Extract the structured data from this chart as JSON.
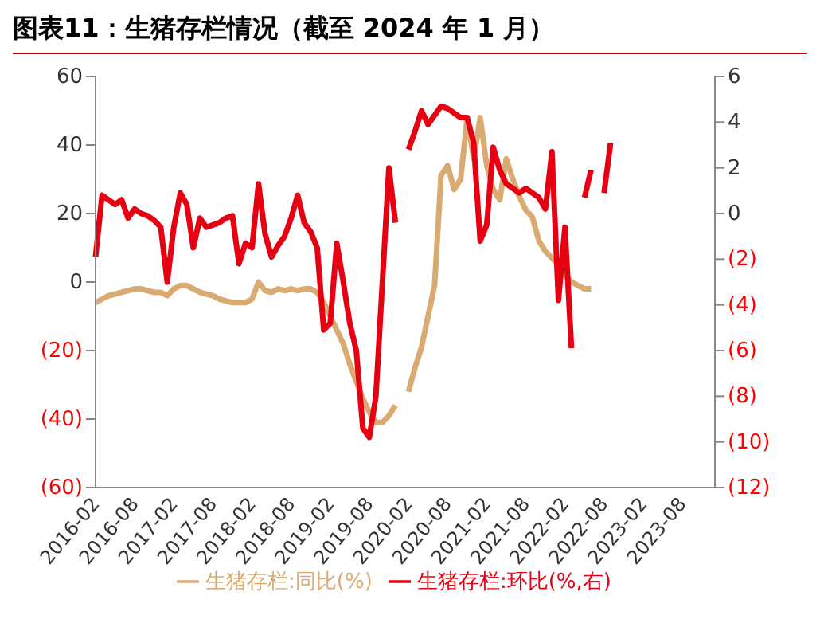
{
  "chart_data": {
    "type": "line",
    "title": "图表11：生猪存栏情况（截至 2024 年 1 月）",
    "categories": [
      "2016-02",
      null,
      null,
      null,
      null,
      null,
      "2016-08",
      null,
      null,
      null,
      null,
      null,
      "2017-02",
      null,
      null,
      null,
      null,
      null,
      "2017-08",
      null,
      null,
      null,
      null,
      null,
      "2018-02",
      null,
      null,
      null,
      null,
      null,
      "2018-08",
      null,
      null,
      null,
      null,
      null,
      "2019-02",
      null,
      null,
      null,
      null,
      null,
      "2019-08",
      null,
      null,
      null,
      null,
      null,
      "2020-02",
      null,
      null,
      null,
      null,
      null,
      "2020-08",
      null,
      null,
      null,
      null,
      null,
      "2021-02",
      null,
      null,
      null,
      null,
      null,
      "2021-08",
      null,
      null,
      null,
      null,
      null,
      "2022-02",
      null,
      null,
      null,
      null,
      null,
      "2022-08",
      null,
      null,
      null,
      null,
      null,
      "2023-02",
      null,
      null,
      null,
      null,
      null,
      "2023-08",
      null,
      null,
      null,
      null,
      null
    ],
    "series": [
      {
        "name": "生猪存栏:同比(%)",
        "color": "#d9ab72",
        "values": [
          -6,
          -5,
          -4,
          -3.5,
          -3,
          -2.5,
          -2,
          -2,
          -2.5,
          -3,
          -3,
          -4,
          -2,
          -1,
          -1,
          -2,
          -3,
          -3.5,
          -4,
          -5,
          -5.5,
          -6,
          -6,
          -6,
          -5,
          0,
          -2.5,
          -3,
          -2,
          -2.5,
          -2,
          -2.5,
          -2,
          -2,
          -3,
          -6,
          -10,
          -14,
          -18,
          -24,
          -29,
          -34,
          -38,
          -41,
          -41,
          -39,
          -36,
          null,
          -32,
          -25,
          -19,
          -10,
          -1,
          31,
          34,
          27,
          30,
          48,
          36,
          48,
          34,
          27,
          24,
          36,
          30,
          25,
          21,
          19,
          12,
          9,
          7,
          5,
          2,
          0,
          -1,
          -2,
          -2,
          null,
          null,
          null,
          null,
          null,
          null,
          null,
          null,
          null,
          null,
          null,
          null,
          null,
          null,
          null,
          null,
          null,
          null,
          null
        ]
      },
      {
        "name": "生猪存栏:环比(%,右)",
        "color": "#e60012",
        "axis": "y2",
        "values": [
          -1.9,
          0.8,
          0.6,
          0.4,
          0.6,
          -0.2,
          0.2,
          0,
          -0.1,
          -0.3,
          -0.6,
          -3,
          -0.6,
          0.9,
          0.4,
          -1.5,
          -0.2,
          -0.6,
          -0.5,
          -0.4,
          -0.2,
          -0.1,
          -2.2,
          -1.3,
          -1.5,
          1.3,
          -0.9,
          -1.9,
          -1.4,
          -1,
          -0.2,
          0.8,
          -0.4,
          -0.8,
          -1.5,
          -5.1,
          -4.8,
          -1.3,
          -3,
          -4.8,
          -6,
          -9.4,
          -9.8,
          -8,
          -3,
          2,
          -0.4,
          null,
          2.8,
          3.6,
          4.5,
          3.9,
          4.3,
          4.7,
          4.6,
          4.4,
          4.2,
          4.2,
          3.1,
          -1.2,
          -0.5,
          2.9,
          1.9,
          1.3,
          1.1,
          0.9,
          1.1,
          0.9,
          0.7,
          0.2,
          2.7,
          -3.8,
          -0.6,
          -5.9,
          null,
          0.7,
          1.9,
          null,
          0.9,
          3.1,
          null,
          null,
          null,
          null,
          null,
          null,
          null,
          null,
          null,
          null,
          null,
          null,
          null,
          null,
          null,
          null
        ]
      }
    ],
    "ylim": [
      -60,
      60
    ],
    "yticks": [
      60,
      40,
      20,
      0,
      {
        "value": -20,
        "label": "(20)"
      },
      {
        "value": -40,
        "label": "(40)"
      },
      {
        "value": -60,
        "label": "(60)"
      }
    ],
    "y2lim": [
      -12,
      6
    ],
    "y2ticks": [
      6,
      4,
      2,
      0,
      {
        "value": -2,
        "label": "(2)"
      },
      {
        "value": -4,
        "label": "(4)"
      },
      {
        "value": -6,
        "label": "(6)"
      },
      {
        "value": -8,
        "label": "(8)"
      },
      {
        "value": -10,
        "label": "(10)"
      },
      {
        "value": -12,
        "label": "(12)"
      }
    ],
    "legend": "bottom",
    "marker": "none",
    "line_style": "solid"
  }
}
